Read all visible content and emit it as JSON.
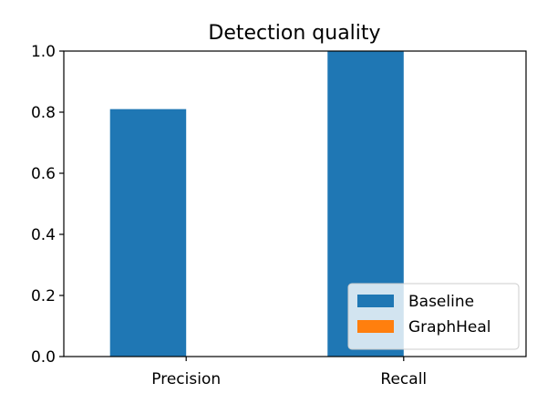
{
  "chart_data": {
    "type": "bar",
    "title": "Detection quality",
    "xlabel": "",
    "ylabel": "",
    "categories": [
      "Precision",
      "Recall"
    ],
    "series": [
      {
        "name": "Baseline",
        "values": [
          0.81,
          1.0
        ],
        "color": "#1f77b4"
      },
      {
        "name": "GraphHeal",
        "values": [
          0.0,
          0.0
        ],
        "color": "#ff7f0e"
      }
    ],
    "ylim": [
      0,
      1.0
    ],
    "yticks": [
      "0.0",
      "0.2",
      "0.4",
      "0.6",
      "0.8",
      "1.0"
    ],
    "grid": false,
    "legend_position": "lower-right"
  }
}
